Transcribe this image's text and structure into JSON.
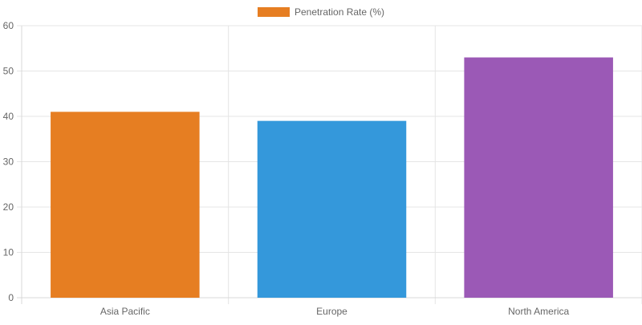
{
  "chart_data": {
    "type": "bar",
    "categories": [
      "Asia Pacific",
      "Europe",
      "North America"
    ],
    "series": [
      {
        "name": "Penetration Rate (%)",
        "values": [
          41,
          39,
          53
        ]
      }
    ],
    "bar_colors": [
      "#e67e22",
      "#3498db",
      "#9b59b6"
    ],
    "legend_color": "#e67e22",
    "ylim": [
      0,
      60
    ],
    "yticks": [
      0,
      10,
      20,
      30,
      40,
      50,
      60
    ],
    "grid": true,
    "legend_position": "top-center",
    "title": "",
    "xlabel": "",
    "ylabel": ""
  }
}
